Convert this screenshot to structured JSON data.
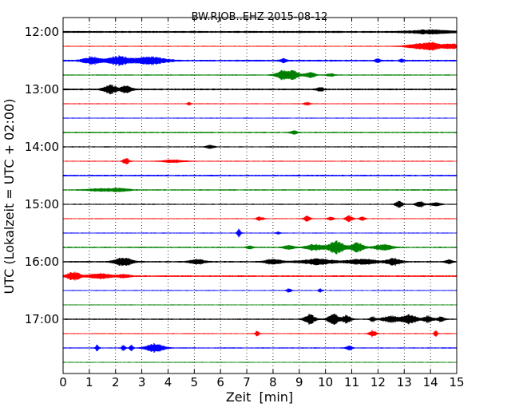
{
  "chart_data": {
    "type": "line",
    "title": "BW.RJOB..EHZ 2015-08-12",
    "xlabel": "Zeit  [min]",
    "ylabel": "UTC (Lokalzeit = UTC + 02:00)",
    "xlim": [
      0,
      15
    ],
    "x_ticks": [
      "0",
      "1",
      "2",
      "3",
      "4",
      "5",
      "6",
      "7",
      "8",
      "9",
      "10",
      "11",
      "12",
      "13",
      "14",
      "15"
    ],
    "y_ticks": [
      {
        "label": "12:00",
        "row": 0
      },
      {
        "label": "13:00",
        "row": 4
      },
      {
        "label": "14:00",
        "row": 8
      },
      {
        "label": "15:00",
        "row": 12
      },
      {
        "label": "16:00",
        "row": 16
      },
      {
        "label": "17:00",
        "row": 20
      }
    ],
    "grid": "vertical dotted at each minute",
    "colors": [
      "#000000",
      "#ff0000",
      "#0000ff",
      "#008000"
    ],
    "traces": [
      {
        "start": "12:00",
        "color": "#000000",
        "base": 1.0,
        "bursts": [
          [
            14.0,
            0.6,
            2.2
          ]
        ]
      },
      {
        "start": "12:15",
        "color": "#ff0000",
        "base": 0.5,
        "bursts": [
          [
            13.6,
            0.4,
            3.0
          ],
          [
            14.1,
            0.25,
            4.0
          ],
          [
            14.8,
            0.2,
            4.0
          ]
        ]
      },
      {
        "start": "12:30",
        "color": "#0000ff",
        "base": 0.9,
        "bursts": [
          [
            1.1,
            0.25,
            4.5
          ],
          [
            2.1,
            0.3,
            5.5
          ],
          [
            3.3,
            0.45,
            5.0
          ],
          [
            8.4,
            0.08,
            2.5
          ],
          [
            12.0,
            0.08,
            2.0
          ],
          [
            12.9,
            0.06,
            2.0
          ]
        ]
      },
      {
        "start": "12:45",
        "color": "#008000",
        "base": 0.6,
        "bursts": [
          [
            8.4,
            0.2,
            6.5
          ],
          [
            8.8,
            0.15,
            5.0
          ],
          [
            9.4,
            0.15,
            3.5
          ],
          [
            10.2,
            0.1,
            2.0
          ]
        ]
      },
      {
        "start": "13:00",
        "color": "#000000",
        "base": 0.9,
        "bursts": [
          [
            1.8,
            0.18,
            5.5
          ],
          [
            2.4,
            0.15,
            5.0
          ],
          [
            9.8,
            0.1,
            2.5
          ]
        ]
      },
      {
        "start": "13:15",
        "color": "#ff0000",
        "base": 0.5,
        "bursts": [
          [
            4.8,
            0.05,
            2.0
          ],
          [
            9.3,
            0.08,
            2.0
          ]
        ]
      },
      {
        "start": "13:30",
        "color": "#0000ff",
        "base": 0.5,
        "bursts": []
      },
      {
        "start": "13:45",
        "color": "#008000",
        "base": 0.7,
        "bursts": [
          [
            8.8,
            0.1,
            2.0
          ]
        ]
      },
      {
        "start": "14:00",
        "color": "#000000",
        "base": 0.6,
        "bursts": [
          [
            5.6,
            0.12,
            2.0
          ]
        ]
      },
      {
        "start": "14:15",
        "color": "#ff0000",
        "base": 0.5,
        "bursts": [
          [
            2.4,
            0.08,
            4.5
          ],
          [
            4.2,
            0.3,
            1.8
          ]
        ]
      },
      {
        "start": "14:30",
        "color": "#0000ff",
        "base": 0.8,
        "bursts": []
      },
      {
        "start": "14:45",
        "color": "#008000",
        "base": 0.7,
        "bursts": [
          [
            1.5,
            0.4,
            1.6
          ],
          [
            2.2,
            0.25,
            2.0
          ]
        ]
      },
      {
        "start": "15:00",
        "color": "#000000",
        "base": 0.6,
        "bursts": [
          [
            12.8,
            0.1,
            4.0
          ],
          [
            13.6,
            0.12,
            4.0
          ],
          [
            14.2,
            0.15,
            2.0
          ]
        ]
      },
      {
        "start": "15:15",
        "color": "#ff0000",
        "base": 0.5,
        "bursts": [
          [
            7.5,
            0.1,
            2.5
          ],
          [
            9.3,
            0.08,
            4.0
          ],
          [
            10.2,
            0.08,
            2.5
          ],
          [
            10.9,
            0.1,
            4.0
          ],
          [
            11.4,
            0.08,
            2.5
          ]
        ]
      },
      {
        "start": "15:30",
        "color": "#0000ff",
        "base": 0.5,
        "bursts": [
          [
            6.7,
            0.05,
            5.0
          ],
          [
            8.2,
            0.06,
            1.5
          ]
        ]
      },
      {
        "start": "15:45",
        "color": "#008000",
        "base": 0.7,
        "bursts": [
          [
            7.1,
            0.08,
            2.5
          ],
          [
            8.6,
            0.15,
            2.5
          ],
          [
            9.6,
            0.25,
            4.0
          ],
          [
            10.4,
            0.22,
            8.0
          ],
          [
            11.2,
            0.2,
            5.5
          ],
          [
            12.2,
            0.25,
            4.0
          ]
        ]
      },
      {
        "start": "16:00",
        "color": "#000000",
        "base": 0.8,
        "bursts": [
          [
            2.3,
            0.25,
            5.0
          ],
          [
            5.1,
            0.22,
            3.0
          ],
          [
            8.0,
            0.25,
            3.0
          ],
          [
            9.7,
            0.5,
            3.5
          ],
          [
            11.4,
            0.4,
            3.5
          ],
          [
            12.6,
            0.2,
            4.5
          ],
          [
            14.7,
            0.1,
            2.5
          ]
        ]
      },
      {
        "start": "16:15",
        "color": "#ff0000",
        "base": 0.8,
        "bursts": [
          [
            0.4,
            0.2,
            5.0
          ],
          [
            1.4,
            0.3,
            3.5
          ],
          [
            2.3,
            0.2,
            2.0
          ]
        ]
      },
      {
        "start": "16:30",
        "color": "#0000ff",
        "base": 0.5,
        "bursts": [
          [
            8.6,
            0.06,
            3.0
          ],
          [
            9.8,
            0.05,
            2.5
          ]
        ]
      },
      {
        "start": "16:45",
        "color": "#008000",
        "base": 0.5,
        "bursts": []
      },
      {
        "start": "17:00",
        "color": "#000000",
        "base": 0.7,
        "bursts": [
          [
            9.4,
            0.15,
            6.0
          ],
          [
            10.3,
            0.15,
            6.5
          ],
          [
            10.8,
            0.12,
            5.0
          ],
          [
            11.8,
            0.08,
            3.0
          ],
          [
            12.5,
            0.25,
            4.0
          ],
          [
            13.2,
            0.2,
            6.0
          ],
          [
            13.9,
            0.15,
            4.0
          ],
          [
            14.4,
            0.1,
            3.0
          ]
        ]
      },
      {
        "start": "17:15",
        "color": "#ff0000",
        "base": 0.5,
        "bursts": [
          [
            7.4,
            0.05,
            4.0
          ],
          [
            11.8,
            0.1,
            4.0
          ],
          [
            14.2,
            0.05,
            4.0
          ]
        ]
      },
      {
        "start": "17:30",
        "color": "#0000ff",
        "base": 0.6,
        "bursts": [
          [
            1.3,
            0.05,
            4.0
          ],
          [
            2.3,
            0.05,
            4.0
          ],
          [
            2.6,
            0.05,
            4.0
          ],
          [
            3.5,
            0.25,
            5.5
          ],
          [
            10.9,
            0.08,
            3.0
          ]
        ]
      },
      {
        "start": "17:45",
        "color": "#008000",
        "base": 0.5,
        "bursts": []
      }
    ]
  }
}
